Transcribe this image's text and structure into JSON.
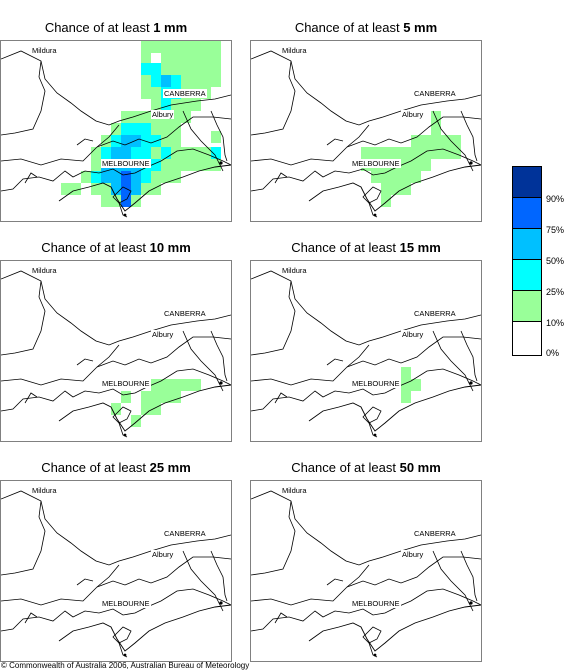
{
  "panels": [
    {
      "prefix": "Chance of at least ",
      "amount": "1 mm",
      "cells": [
        [
          140,
          22,
          "#00ffff"
        ],
        [
          150,
          22,
          "#00ffff"
        ],
        [
          150,
          34,
          "#00ffff"
        ],
        [
          160,
          34,
          "#00c0ff"
        ],
        [
          170,
          34,
          "#00ffff"
        ],
        [
          160,
          46,
          "#00ffff"
        ],
        [
          170,
          46,
          "#00ffff"
        ],
        [
          160,
          58,
          "#00ffff"
        ],
        [
          120,
          82,
          "#00ffff"
        ],
        [
          130,
          82,
          "#00ffff"
        ],
        [
          140,
          82,
          "#00ffff"
        ],
        [
          110,
          94,
          "#00ffff"
        ],
        [
          120,
          94,
          "#00c0ff"
        ],
        [
          130,
          94,
          "#00c0ff"
        ],
        [
          140,
          94,
          "#00ffff"
        ],
        [
          150,
          94,
          "#00ffff"
        ],
        [
          100,
          106,
          "#00ffff"
        ],
        [
          110,
          106,
          "#00c0ff"
        ],
        [
          120,
          106,
          "#00c0ff"
        ],
        [
          130,
          106,
          "#00ffff"
        ],
        [
          140,
          106,
          "#00ffff"
        ],
        [
          160,
          106,
          "#00ffff"
        ],
        [
          100,
          118,
          "#00c0ff"
        ],
        [
          110,
          118,
          "#00c0ff"
        ],
        [
          120,
          118,
          "#00c0ff"
        ],
        [
          130,
          118,
          "#00c0ff"
        ],
        [
          140,
          118,
          "#00ffff"
        ],
        [
          150,
          118,
          "#00ffff"
        ],
        [
          100,
          130,
          "#00c0ff"
        ],
        [
          110,
          130,
          "#00c0ff"
        ],
        [
          120,
          130,
          "#0066ff"
        ],
        [
          130,
          130,
          "#00c0ff"
        ],
        [
          140,
          130,
          "#00ffff"
        ],
        [
          110,
          142,
          "#00c0ff"
        ],
        [
          120,
          142,
          "#0066ff"
        ],
        [
          130,
          142,
          "#00c0ff"
        ],
        [
          120,
          154,
          "#0066ff"
        ],
        [
          90,
          130,
          "#00ffff"
        ],
        [
          210,
          106,
          "#00ffff"
        ]
      ]
    },
    {
      "prefix": "Chance of at least ",
      "amount": "5 mm",
      "cells": []
    },
    {
      "prefix": "Chance of at least ",
      "amount": "10 mm",
      "cells": []
    },
    {
      "prefix": "Chance of at least ",
      "amount": "15 mm",
      "cells": []
    },
    {
      "prefix": "Chance of at least ",
      "amount": "25 mm",
      "cells": []
    },
    {
      "prefix": "Chance of at least ",
      "amount": "50 mm",
      "cells": []
    }
  ],
  "green_cells": [
    [
      [
        140,
        0
      ],
      [
        150,
        0
      ],
      [
        160,
        0
      ],
      [
        170,
        0
      ],
      [
        180,
        0
      ],
      [
        190,
        0
      ],
      [
        200,
        0
      ],
      [
        210,
        0
      ],
      [
        140,
        10
      ],
      [
        160,
        10
      ],
      [
        170,
        10
      ],
      [
        180,
        10
      ],
      [
        190,
        10
      ],
      [
        200,
        10
      ],
      [
        210,
        10
      ],
      [
        140,
        22
      ],
      [
        160,
        22
      ],
      [
        170,
        22
      ],
      [
        180,
        22
      ],
      [
        190,
        22
      ],
      [
        200,
        22
      ],
      [
        210,
        22
      ],
      [
        140,
        34
      ],
      [
        180,
        34
      ],
      [
        190,
        34
      ],
      [
        200,
        34
      ],
      [
        210,
        34
      ],
      [
        140,
        46
      ],
      [
        150,
        46
      ],
      [
        180,
        46
      ],
      [
        190,
        46
      ],
      [
        200,
        46
      ],
      [
        150,
        58
      ],
      [
        170,
        58
      ],
      [
        180,
        58
      ],
      [
        190,
        58
      ],
      [
        150,
        70
      ],
      [
        160,
        70
      ],
      [
        170,
        70
      ],
      [
        180,
        70
      ],
      [
        120,
        70
      ],
      [
        130,
        70
      ],
      [
        140,
        70
      ],
      [
        110,
        82
      ],
      [
        150,
        82
      ],
      [
        160,
        82
      ],
      [
        170,
        82
      ],
      [
        100,
        94
      ],
      [
        160,
        94
      ],
      [
        170,
        94
      ],
      [
        90,
        106
      ],
      [
        150,
        106
      ],
      [
        170,
        106
      ],
      [
        180,
        106
      ],
      [
        190,
        106
      ],
      [
        200,
        106
      ],
      [
        90,
        118
      ],
      [
        160,
        118
      ],
      [
        170,
        118
      ],
      [
        180,
        118
      ],
      [
        190,
        118
      ],
      [
        200,
        118
      ],
      [
        210,
        118
      ],
      [
        80,
        130
      ],
      [
        150,
        130
      ],
      [
        160,
        130
      ],
      [
        170,
        130
      ],
      [
        60,
        142
      ],
      [
        70,
        142
      ],
      [
        90,
        142
      ],
      [
        100,
        142
      ],
      [
        140,
        142
      ],
      [
        150,
        142
      ],
      [
        100,
        154
      ],
      [
        110,
        154
      ],
      [
        130,
        154
      ],
      [
        210,
        90
      ]
    ],
    [
      [
        180,
        82
      ],
      [
        160,
        94
      ],
      [
        170,
        94
      ],
      [
        180,
        94
      ],
      [
        190,
        94
      ],
      [
        200,
        94
      ],
      [
        150,
        106
      ],
      [
        160,
        106
      ],
      [
        170,
        106
      ],
      [
        180,
        106
      ],
      [
        190,
        106
      ],
      [
        200,
        106
      ],
      [
        110,
        106
      ],
      [
        120,
        106
      ],
      [
        130,
        106
      ],
      [
        140,
        106
      ],
      [
        110,
        118
      ],
      [
        120,
        118
      ],
      [
        130,
        118
      ],
      [
        140,
        118
      ],
      [
        150,
        118
      ],
      [
        160,
        118
      ],
      [
        170,
        118
      ],
      [
        120,
        130
      ],
      [
        130,
        130
      ],
      [
        140,
        130
      ],
      [
        150,
        130
      ],
      [
        160,
        130
      ],
      [
        130,
        142
      ],
      [
        140,
        142
      ],
      [
        150,
        142
      ],
      [
        130,
        154
      ],
      [
        180,
        70
      ]
    ],
    [
      [
        150,
        118
      ],
      [
        160,
        118
      ],
      [
        170,
        118
      ],
      [
        180,
        118
      ],
      [
        190,
        118
      ],
      [
        140,
        130
      ],
      [
        150,
        130
      ],
      [
        160,
        130
      ],
      [
        170,
        130
      ],
      [
        140,
        142
      ],
      [
        150,
        142
      ],
      [
        130,
        154
      ],
      [
        110,
        142
      ],
      [
        120,
        130
      ]
    ],
    [
      [
        150,
        118
      ],
      [
        160,
        118
      ],
      [
        150,
        130
      ],
      [
        150,
        106
      ]
    ],
    [],
    []
  ],
  "map_labels": {
    "mildura": "Mildura",
    "canberra": "CANBERRA",
    "albury": "Albury",
    "melbourne": "MELBOURNE"
  },
  "legend": {
    "colors": [
      "#003399",
      "#0066ff",
      "#00c0ff",
      "#00ffff",
      "#99ff99",
      "#ffffff"
    ],
    "labels": [
      "90%",
      "75%",
      "50%",
      "25%",
      "10%",
      "0%"
    ]
  },
  "copyright": "© Commonwealth of Australia 2006, Australian Bureau of Meteorology"
}
